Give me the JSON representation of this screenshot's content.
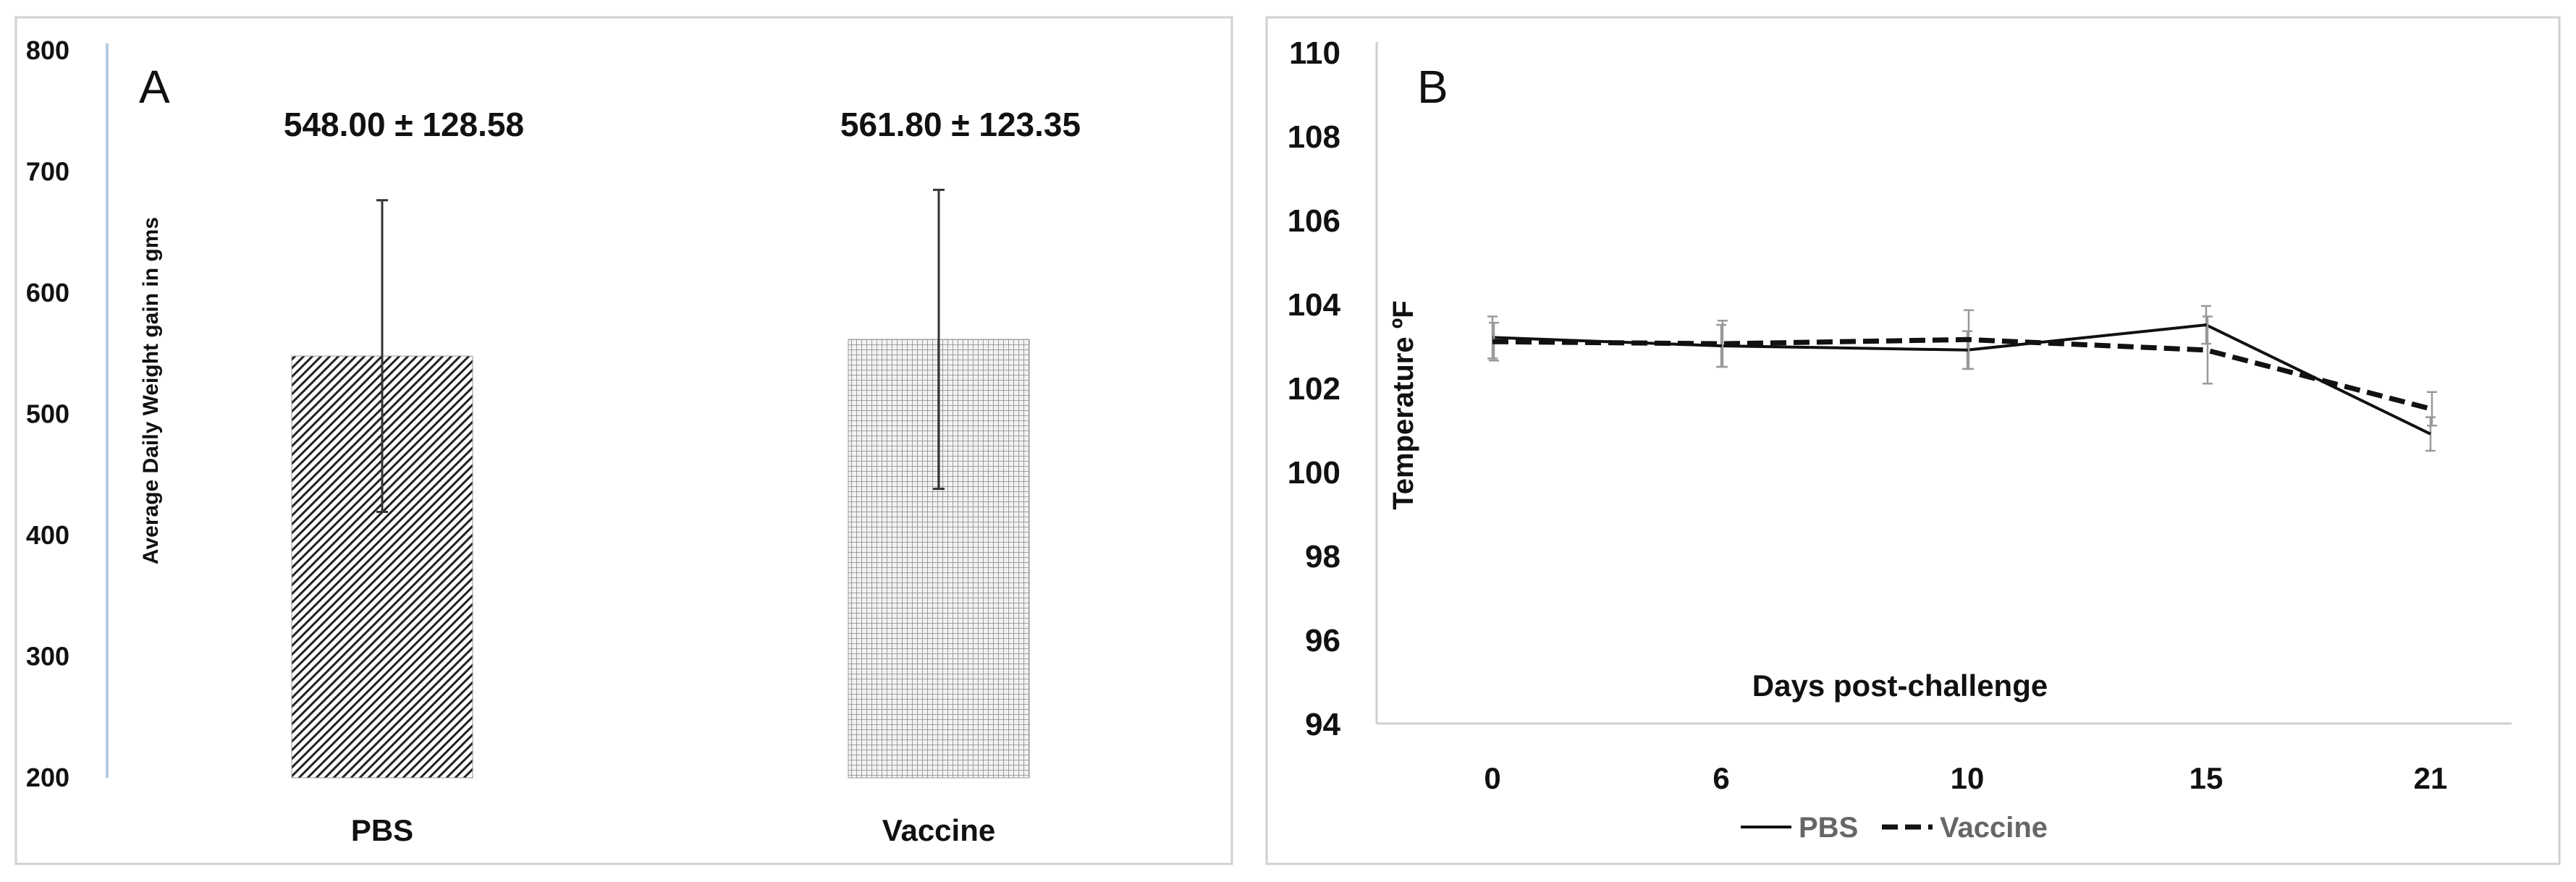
{
  "chart_data": [
    {
      "panel_label": "A",
      "type": "bar",
      "categories": [
        "PBS",
        "Vaccine"
      ],
      "values": [
        548.0,
        561.8
      ],
      "errors": [
        128.58,
        123.35
      ],
      "annotations": [
        "548.00 ± 128.58",
        "561.80 ± 123.35"
      ],
      "ylabel": "Average Daily Weight gain in gms",
      "xlabel": "",
      "ylim": [
        200,
        800
      ],
      "yticks": [
        "200",
        "300",
        "400",
        "500",
        "600",
        "700",
        "800"
      ],
      "bar_patterns": [
        "diagonal-hatch",
        "fine-grid"
      ],
      "grid": false
    },
    {
      "panel_label": "B",
      "type": "line",
      "categories": [
        "0",
        "6",
        "10",
        "15",
        "21"
      ],
      "series": [
        {
          "name": "PBS",
          "values": [
            103.2,
            103.0,
            102.9,
            103.5,
            100.9
          ],
          "errors": [
            0.5,
            0.5,
            0.45,
            0.45,
            0.4
          ],
          "style": "solid"
        },
        {
          "name": "Vaccine",
          "values": [
            103.1,
            103.05,
            103.15,
            102.9,
            101.5
          ],
          "errors": [
            0.45,
            0.55,
            0.7,
            0.8,
            0.4
          ],
          "style": "dashed"
        }
      ],
      "xlabel": "Days post-challenge",
      "ylabel": "Temperature ºF",
      "ylim": [
        94,
        110
      ],
      "yticks": [
        "94",
        "96",
        "98",
        "100",
        "102",
        "104",
        "106",
        "108",
        "110"
      ],
      "legend_position": "bottom",
      "grid": false
    }
  ]
}
